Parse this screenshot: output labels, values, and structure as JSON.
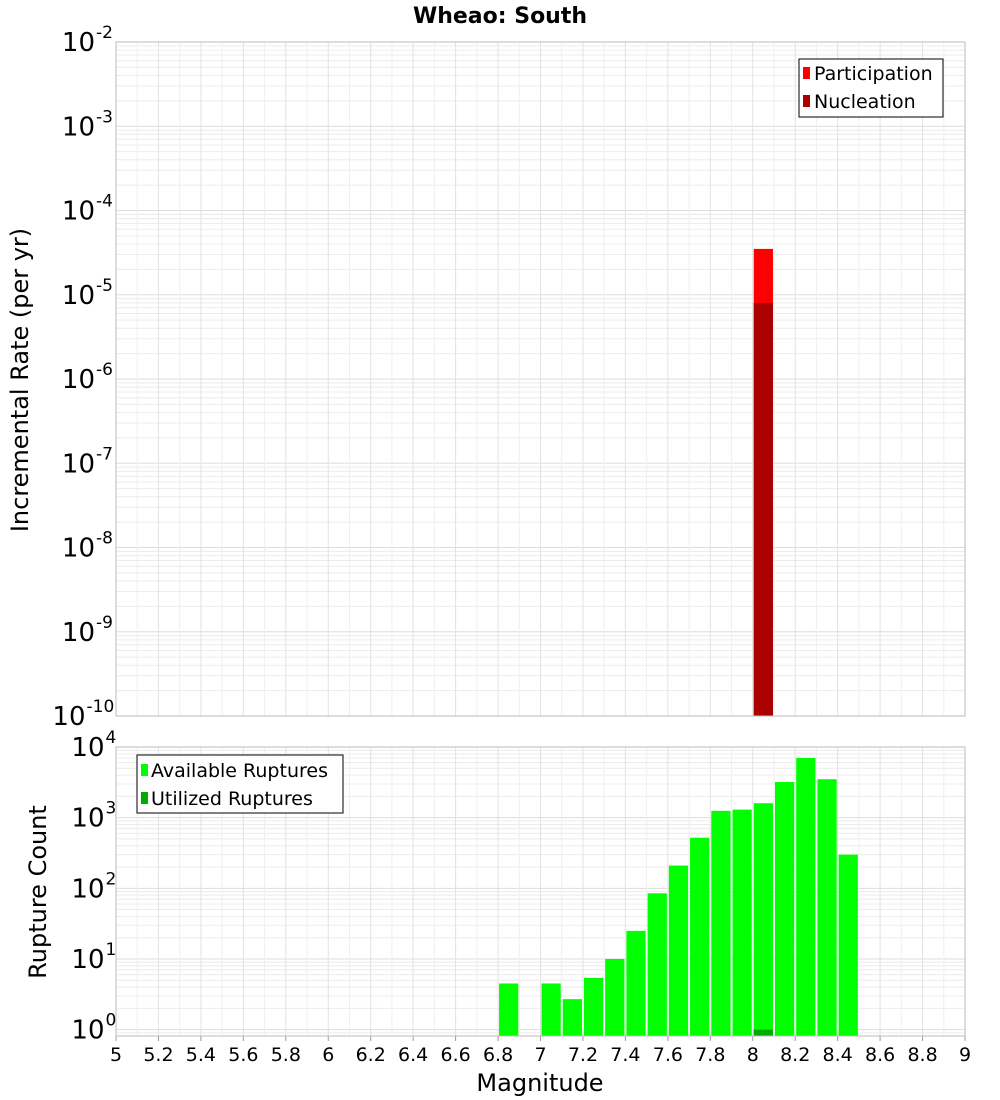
{
  "chart_data": [
    {
      "type": "bar",
      "title": "Wheao: South",
      "xlabel": "",
      "ylabel": "Incremental Rate (per yr)",
      "yscale": "log",
      "ylim_exp": [
        -10,
        -2
      ],
      "ytick_exps": [
        -10,
        -9,
        -8,
        -7,
        -6,
        -5,
        -4,
        -3,
        -2
      ],
      "xlim": [
        5,
        9
      ],
      "bin_width": 0.1,
      "grid": true,
      "legend_position": "top-right",
      "colors": {
        "Participation": "#ff0000",
        "Nucleation": "#aa0000"
      },
      "series": [
        {
          "name": "Participation",
          "x": [
            8.05
          ],
          "values": [
            3.5e-05
          ]
        },
        {
          "name": "Nucleation",
          "x": [
            8.05
          ],
          "values": [
            8e-06
          ]
        }
      ]
    },
    {
      "type": "bar",
      "xlabel": "Magnitude",
      "ylabel": "Rupture Count",
      "yscale": "log",
      "ylim_exp": [
        -0.09,
        4
      ],
      "ytick_exps": [
        0,
        1,
        2,
        3,
        4
      ],
      "xlim": [
        5,
        9
      ],
      "xticks": [
        "5",
        "5.2",
        "5.4",
        "5.6",
        "5.8",
        "6",
        "6.2",
        "6.4",
        "6.6",
        "6.8",
        "7",
        "7.2",
        "7.4",
        "7.6",
        "7.8",
        "8",
        "8.2",
        "8.4",
        "8.6",
        "8.8",
        "9"
      ],
      "bin_width": 0.1,
      "grid": true,
      "legend_position": "top-left",
      "colors": {
        "Available Ruptures": "#00ff00",
        "Utilized Ruptures": "#00aa00"
      },
      "series": [
        {
          "name": "Available Ruptures",
          "x": [
            6.85,
            7.05,
            7.15,
            7.25,
            7.35,
            7.45,
            7.55,
            7.65,
            7.75,
            7.85,
            7.95,
            8.05,
            8.15,
            8.25,
            8.35,
            8.45
          ],
          "values": [
            4.5,
            4.5,
            2.7,
            5.4,
            10,
            25,
            85,
            210,
            520,
            1250,
            1300,
            1600,
            3200,
            7000,
            3500,
            300
          ]
        },
        {
          "name": "Utilized Ruptures",
          "x": [
            8.05
          ],
          "values": [
            1
          ]
        }
      ]
    }
  ]
}
